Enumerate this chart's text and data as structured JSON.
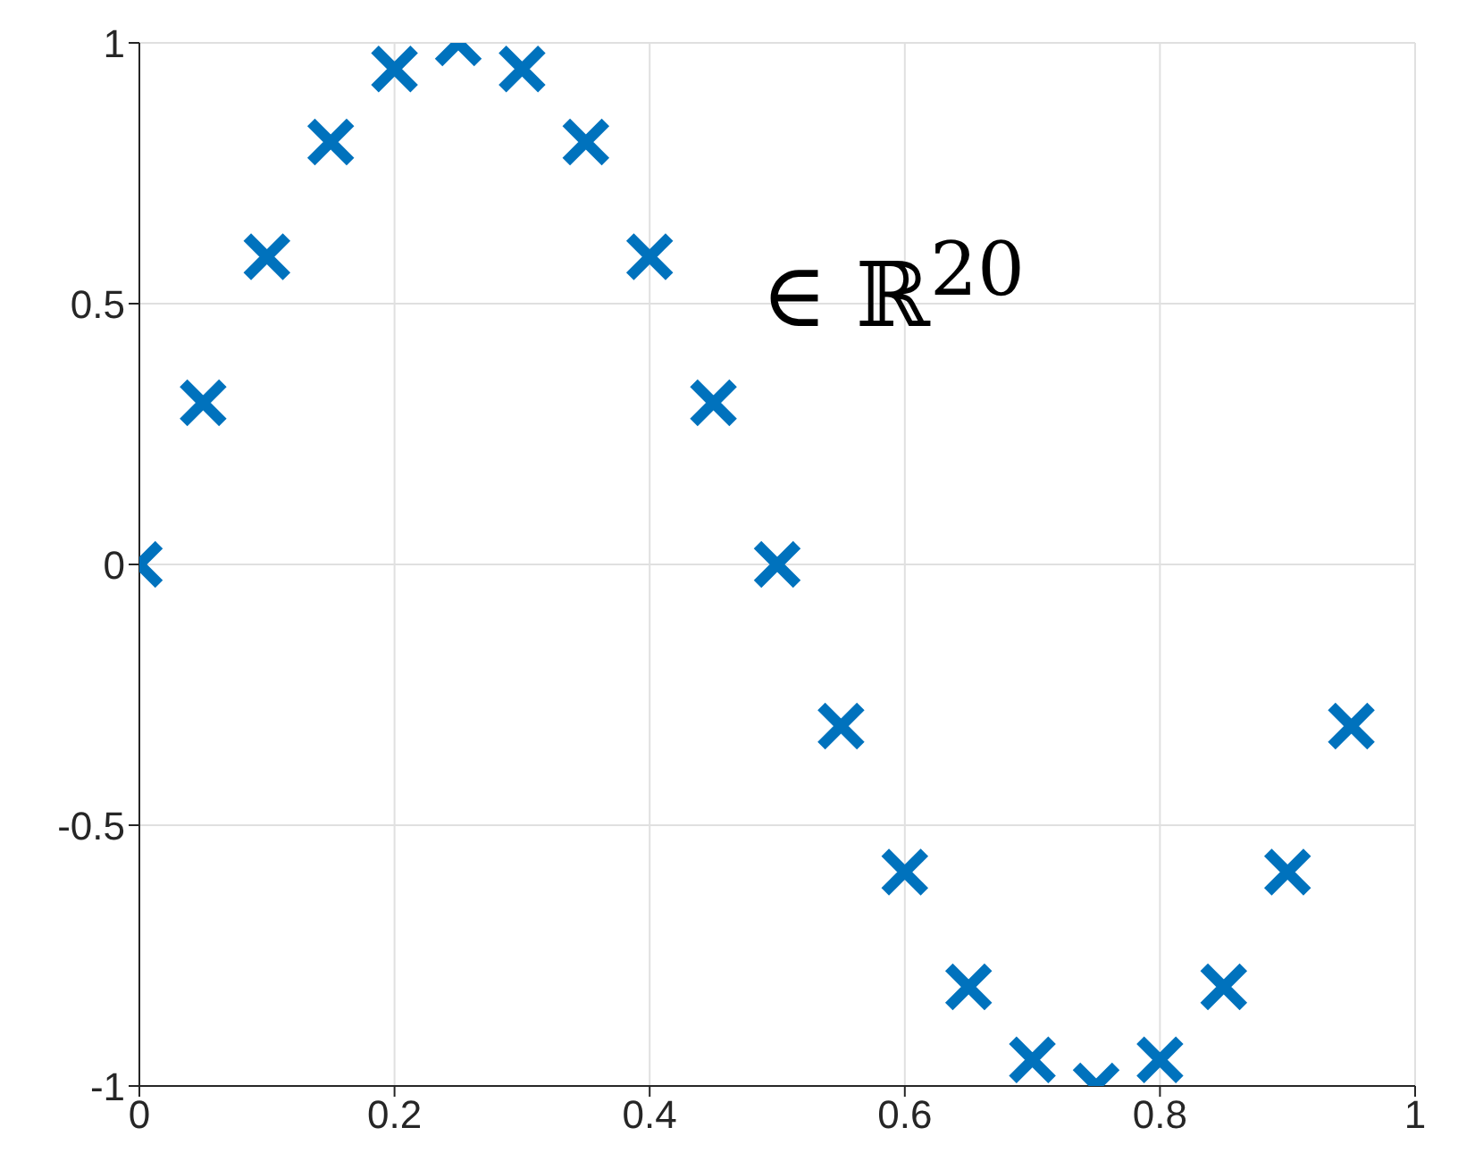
{
  "chart_data": {
    "type": "scatter",
    "x": [
      0,
      0.05,
      0.1,
      0.15,
      0.2,
      0.25,
      0.3,
      0.35,
      0.4,
      0.45,
      0.5,
      0.55,
      0.6,
      0.65,
      0.7,
      0.75,
      0.8,
      0.85,
      0.9,
      0.95
    ],
    "series": [
      {
        "color": "#0072bd",
        "values": [
          0,
          0.31,
          0.59,
          0.81,
          0.95,
          1,
          0.95,
          0.81,
          0.59,
          0.31,
          0,
          -0.31,
          -0.59,
          -0.81,
          -0.95,
          -1,
          -0.95,
          -0.81,
          -0.59,
          -0.31
        ]
      }
    ],
    "xlim": [
      0,
      1
    ],
    "xticks": [
      0,
      0.2,
      0.4,
      0.6,
      0.8,
      1
    ],
    "ylim": [
      -1,
      1
    ],
    "yticks": [
      -1,
      -0.5,
      0,
      0.5,
      1
    ],
    "grid": true,
    "marker": "cross",
    "legend": false,
    "annotations": [
      "∈ ℝ$^{20}$"
    ]
  }
}
